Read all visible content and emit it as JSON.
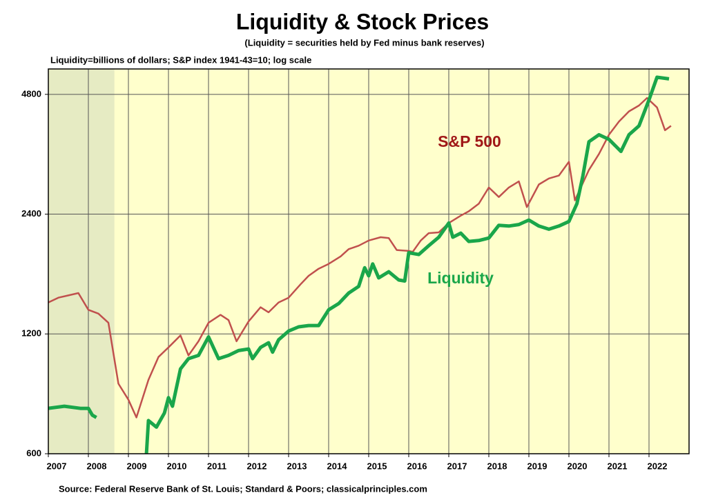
{
  "chart_data": {
    "type": "line",
    "title": "Liquidity & Stock Prices",
    "subtitle": "(Liquidity = securities held by Fed minus bank reserves)",
    "note": "Liquidity=billions  of dollars;  S&P index  1941-43=10;  log scale",
    "source": "Source: Federal Reserve Bank of St. Louis; Standard & Poors; classicalprinciples.com",
    "log_scale": true,
    "grid": true,
    "xlim": [
      2007,
      2023
    ],
    "xticks": [
      2007,
      2008,
      2009,
      2010,
      2011,
      2012,
      2013,
      2014,
      2015,
      2016,
      2017,
      2018,
      2019,
      2020,
      2021,
      2022
    ],
    "ylim": [
      600,
      5560
    ],
    "yticks": [
      600,
      1200,
      2400,
      4800
    ],
    "shaded_region": [
      2007,
      2008.65
    ],
    "series": [
      {
        "name": "S&P 500",
        "color": "#c0504d",
        "x": [
          2007.0,
          2007.25,
          2007.5,
          2007.75,
          2008.0,
          2008.25,
          2008.5,
          2008.75,
          2009.0,
          2009.2,
          2009.5,
          2009.75,
          2010.0,
          2010.3,
          2010.5,
          2010.75,
          2011.0,
          2011.3,
          2011.5,
          2011.7,
          2012.0,
          2012.3,
          2012.5,
          2012.75,
          2013.0,
          2013.3,
          2013.5,
          2013.75,
          2014.0,
          2014.3,
          2014.5,
          2014.75,
          2015.0,
          2015.3,
          2015.5,
          2015.7,
          2016.0,
          2016.1,
          2016.3,
          2016.5,
          2016.75,
          2017.0,
          2017.3,
          2017.5,
          2017.75,
          2018.0,
          2018.25,
          2018.5,
          2018.75,
          2018.95,
          2019.25,
          2019.5,
          2019.75,
          2020.0,
          2020.15,
          2020.5,
          2020.75,
          2021.0,
          2021.25,
          2021.5,
          2021.75,
          2021.95,
          2022.2,
          2022.4,
          2022.55
        ],
        "values": [
          1440,
          1480,
          1500,
          1520,
          1380,
          1350,
          1280,
          900,
          820,
          740,
          920,
          1050,
          1110,
          1190,
          1060,
          1150,
          1280,
          1340,
          1300,
          1150,
          1290,
          1400,
          1360,
          1440,
          1480,
          1600,
          1680,
          1750,
          1800,
          1880,
          1960,
          2000,
          2060,
          2100,
          2090,
          1950,
          1940,
          1930,
          2060,
          2150,
          2160,
          2280,
          2380,
          2440,
          2550,
          2800,
          2650,
          2800,
          2900,
          2500,
          2850,
          2950,
          3000,
          3250,
          2600,
          3100,
          3400,
          3800,
          4100,
          4350,
          4500,
          4700,
          4450,
          3900,
          4000
        ]
      },
      {
        "name": "Liquidity",
        "color": "#1aa64a",
        "x": [
          2007.0,
          2007.4,
          2007.8,
          2008.0,
          2008.1,
          2008.2,
          2008.3,
          2009.45,
          2009.5,
          2009.7,
          2009.9,
          2010.0,
          2010.1,
          2010.3,
          2010.5,
          2010.75,
          2011.0,
          2011.25,
          2011.5,
          2011.75,
          2012.0,
          2012.1,
          2012.3,
          2012.5,
          2012.6,
          2012.75,
          2013.0,
          2013.25,
          2013.5,
          2013.75,
          2014.0,
          2014.25,
          2014.5,
          2014.75,
          2014.9,
          2015.0,
          2015.1,
          2015.25,
          2015.5,
          2015.75,
          2015.9,
          2016.0,
          2016.25,
          2016.5,
          2016.75,
          2017.0,
          2017.1,
          2017.3,
          2017.5,
          2017.75,
          2018.0,
          2018.25,
          2018.5,
          2018.75,
          2019.0,
          2019.25,
          2019.5,
          2019.75,
          2020.0,
          2020.2,
          2020.35,
          2020.5,
          2020.75,
          2021.0,
          2021.3,
          2021.5,
          2021.75,
          2022.0,
          2022.2,
          2022.5
        ],
        "values": [
          780,
          790,
          780,
          780,
          750,
          740,
          null,
          600,
          727,
          700,
          760,
          830,
          790,
          980,
          1040,
          1060,
          1180,
          1040,
          1060,
          1090,
          1100,
          1040,
          1110,
          1140,
          1080,
          1160,
          1220,
          1250,
          1260,
          1260,
          1380,
          1430,
          1520,
          1580,
          1760,
          1680,
          1800,
          1660,
          1720,
          1640,
          1630,
          1920,
          1900,
          2000,
          2100,
          2280,
          2100,
          2150,
          2050,
          2060,
          2090,
          2250,
          2240,
          2260,
          2320,
          2240,
          2200,
          2240,
          2300,
          2550,
          3000,
          3650,
          3800,
          3700,
          3450,
          3800,
          4000,
          4650,
          5300,
          5250
        ]
      }
    ]
  }
}
